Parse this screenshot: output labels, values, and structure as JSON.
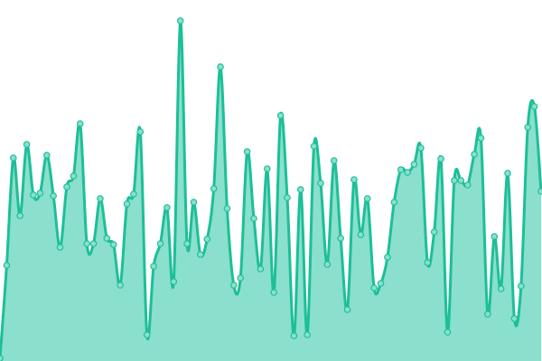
{
  "chart_data": {
    "type": "area",
    "title": "",
    "xlabel": "",
    "ylabel": "",
    "grid": false,
    "legend": "none",
    "ylim": [
      0,
      400
    ],
    "x": [
      0,
      1,
      2,
      3,
      4,
      5,
      6,
      7,
      8,
      9,
      10,
      11,
      12,
      13,
      14,
      15,
      16,
      17,
      18,
      19,
      20,
      21,
      22,
      23,
      24,
      25,
      26,
      27,
      28,
      29,
      30,
      31,
      32,
      33,
      34,
      35,
      36,
      37,
      38,
      39,
      40,
      41,
      42,
      43,
      44,
      45,
      46,
      47,
      48,
      49,
      50,
      51,
      52,
      53,
      54,
      55,
      56,
      57,
      58,
      59,
      60,
      61,
      62,
      63,
      64,
      65,
      66,
      67,
      68,
      69,
      70,
      71,
      72,
      73,
      74,
      75,
      76,
      77,
      78,
      79,
      80,
      81
    ],
    "series": [
      {
        "values": [
          3,
          106,
          225,
          161,
          240,
          184,
          186,
          228,
          183,
          126,
          193,
          205,
          263,
          130,
          130,
          180,
          136,
          129,
          84,
          174,
          185,
          254,
          29,
          105,
          130,
          170,
          88,
          377,
          130,
          176,
          118,
          135,
          191,
          326,
          169,
          84,
          92,
          232,
          158,
          102,
          213,
          76,
          272,
          181,
          28,
          190,
          29,
          238,
          197,
          107,
          222,
          136,
          57,
          201,
          140,
          180,
          81,
          86,
          115,
          176,
          212,
          209,
          218,
          236,
          109,
          143,
          224,
          32,
          200,
          200,
          195,
          229,
          247,
          52,
          138,
          80,
          208,
          47,
          83,
          259,
          282,
          188
        ]
      }
    ],
    "colors": {
      "line": "#1dbf98",
      "fill": "#8adfcd",
      "point_fill": "#8adfcd",
      "point_stroke": "#1dbf98"
    }
  }
}
